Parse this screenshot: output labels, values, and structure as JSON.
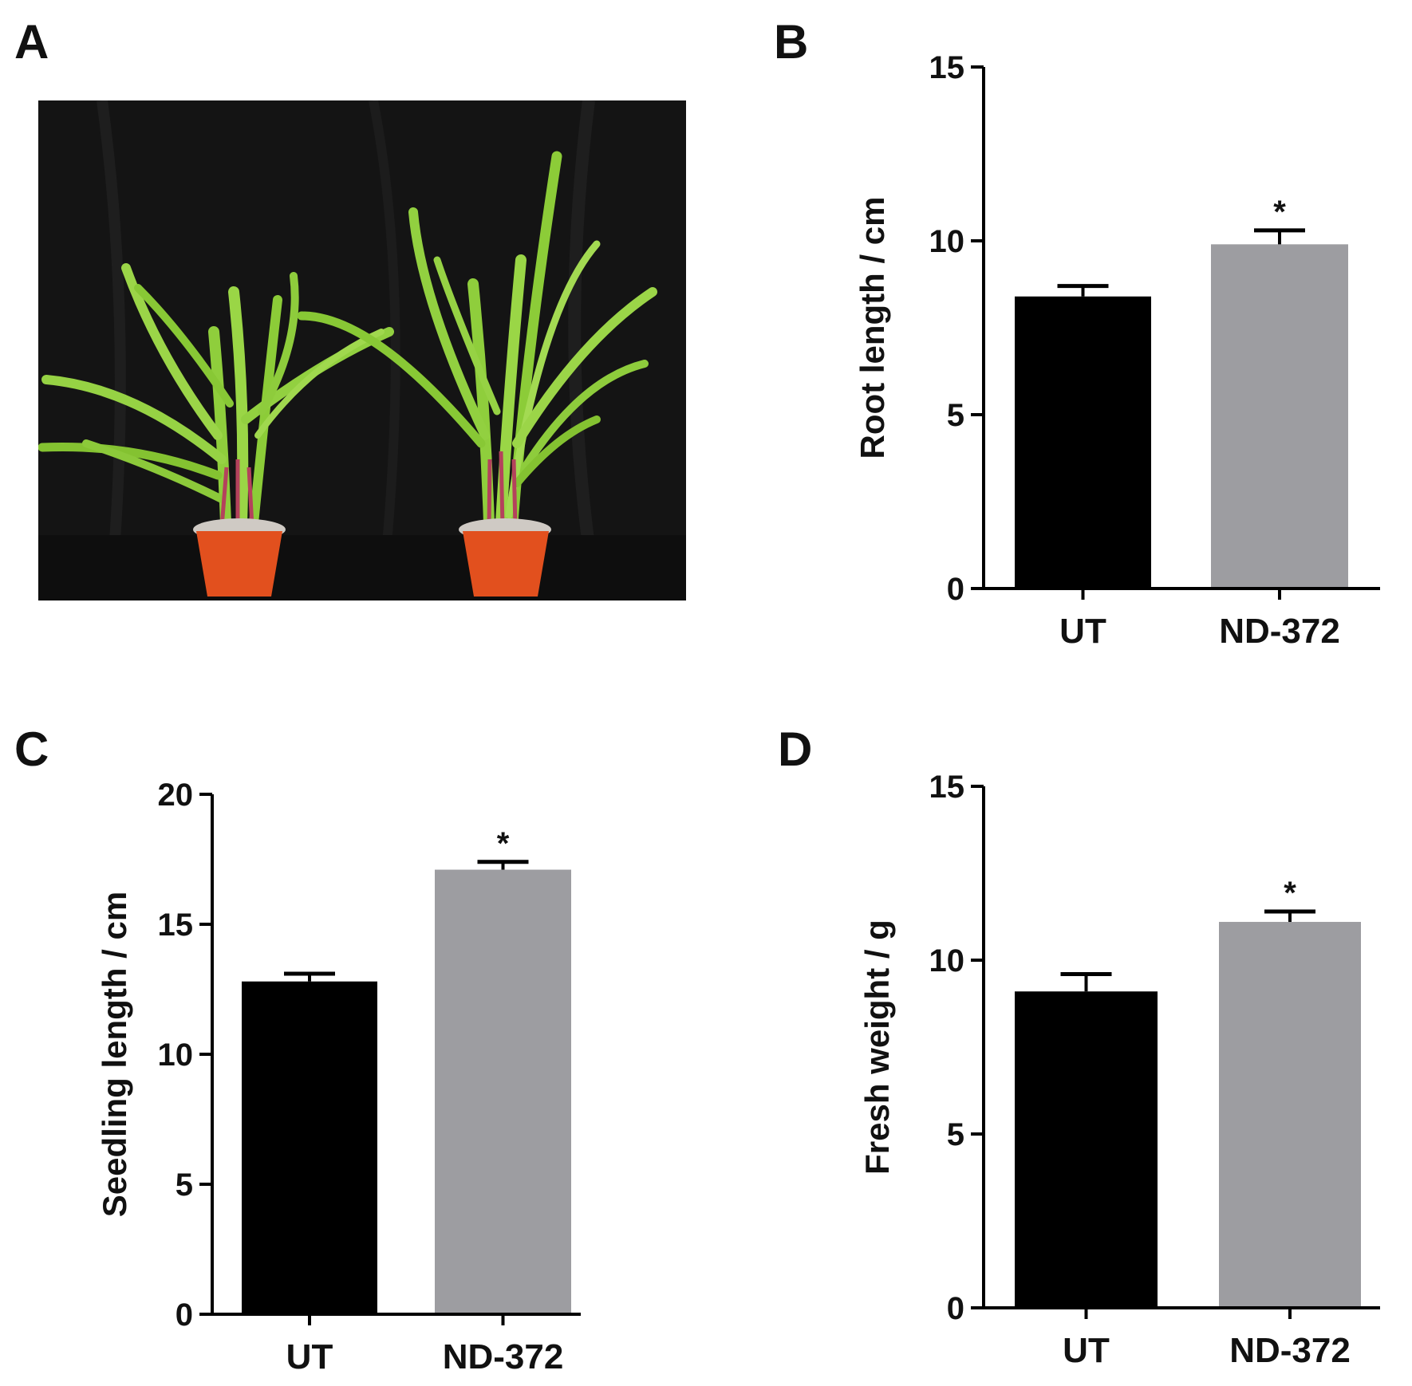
{
  "panels": {
    "a": "A",
    "b": "B",
    "c": "C",
    "d": "D"
  },
  "photo": {
    "background": "#141414",
    "pot_color": "#e2501e",
    "leaf_color": "#8fce3c"
  },
  "colors": {
    "ut": "#000000",
    "nd372": "#9d9da1"
  },
  "chart_data": [
    {
      "panel": "B",
      "type": "bar",
      "categories": [
        "UT",
        "ND-372"
      ],
      "values": [
        8.4,
        9.9
      ],
      "errors": [
        0.3,
        0.4
      ],
      "significance": [
        "",
        "*"
      ],
      "ylabel": "Root length / cm",
      "ylim": [
        0,
        15
      ],
      "yticks": [
        0,
        5,
        10,
        15
      ]
    },
    {
      "panel": "C",
      "type": "bar",
      "categories": [
        "UT",
        "ND-372"
      ],
      "values": [
        12.8,
        17.1
      ],
      "errors": [
        0.3,
        0.3
      ],
      "significance": [
        "",
        "*"
      ],
      "ylabel": "Seedling length / cm",
      "ylim": [
        0,
        20
      ],
      "yticks": [
        0,
        5,
        10,
        15,
        20
      ]
    },
    {
      "panel": "D",
      "type": "bar",
      "categories": [
        "UT",
        "ND-372"
      ],
      "values": [
        9.1,
        11.1
      ],
      "errors": [
        0.5,
        0.3
      ],
      "significance": [
        "",
        "*"
      ],
      "ylabel": "Fresh weight / g",
      "ylim": [
        0,
        15
      ],
      "yticks": [
        0,
        5,
        10,
        15
      ]
    }
  ]
}
